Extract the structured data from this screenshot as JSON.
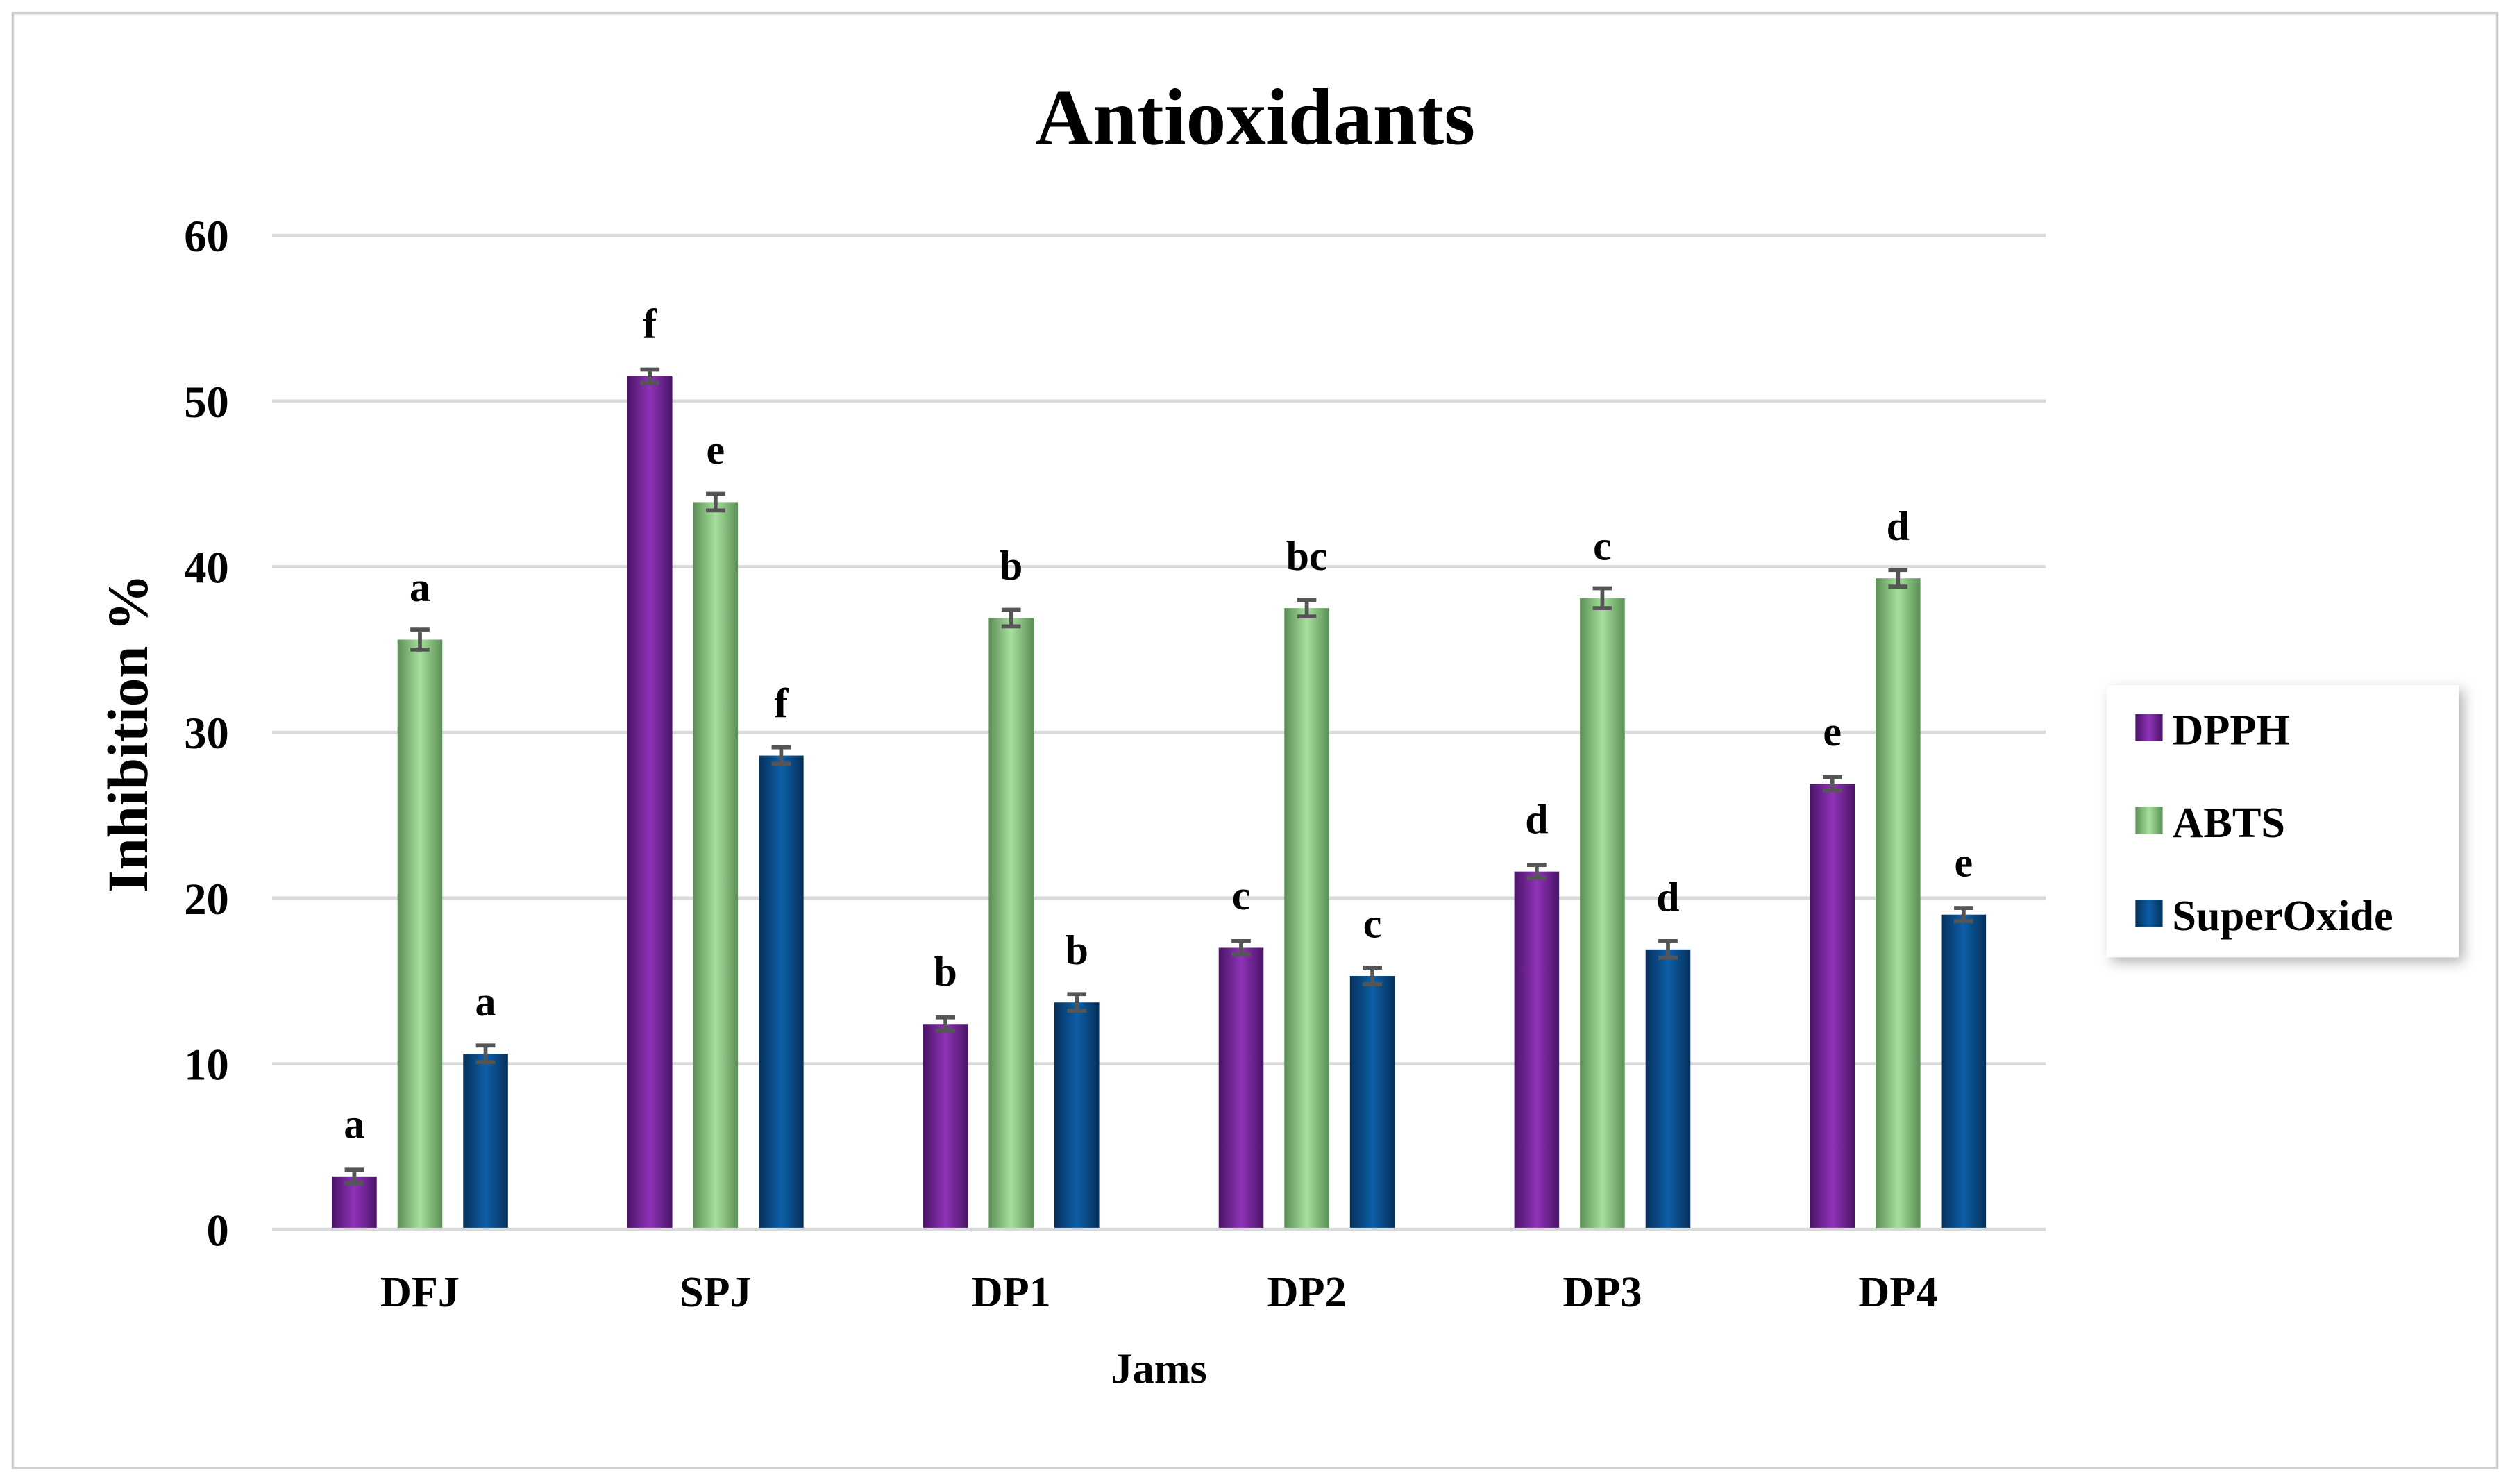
{
  "chart_data": {
    "type": "bar",
    "title": "Antioxidants",
    "xlabel": "Jams",
    "ylabel": "Inhibition %",
    "ylim": [
      0,
      60
    ],
    "yticks": [
      "0",
      "10",
      "20",
      "30",
      "40",
      "50",
      "60"
    ],
    "grid": true,
    "legend_position": "right",
    "categories": [
      "DFJ",
      "SPJ",
      "DP1",
      "DP2",
      "DP3",
      "DP4"
    ],
    "series": [
      {
        "name": "DPPH",
        "color": "#7b2a9e",
        "values": [
          3.2,
          51.5,
          12.4,
          17.0,
          21.6,
          26.9
        ],
        "errors": [
          0.4,
          0.4,
          0.4,
          0.4,
          0.4,
          0.4
        ],
        "letters": [
          "a",
          "f",
          "b",
          "c",
          "d",
          "e"
        ]
      },
      {
        "name": "ABTS",
        "color": "#8fce86",
        "values": [
          35.6,
          43.9,
          36.9,
          37.5,
          38.1,
          39.3
        ],
        "errors": [
          0.6,
          0.5,
          0.5,
          0.5,
          0.6,
          0.5
        ],
        "letters": [
          "a",
          "e",
          "b",
          "bc",
          "c",
          "d"
        ]
      },
      {
        "name": "SuperOxide",
        "color": "#0b5394",
        "values": [
          10.6,
          28.6,
          13.7,
          15.3,
          16.9,
          19.0
        ],
        "errors": [
          0.5,
          0.5,
          0.5,
          0.5,
          0.5,
          0.4
        ],
        "letters": [
          "a",
          "f",
          "b",
          "c",
          "d",
          "e"
        ]
      }
    ]
  }
}
